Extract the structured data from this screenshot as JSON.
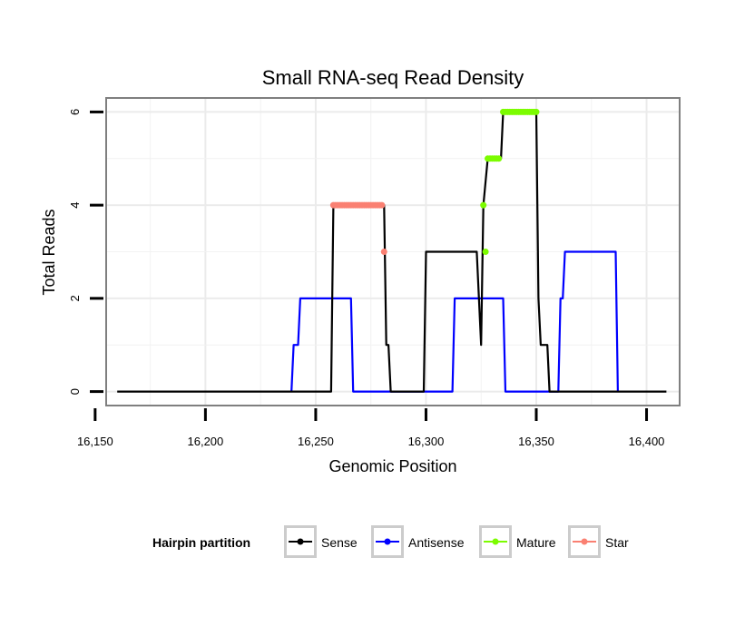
{
  "chart_data": {
    "type": "line",
    "title": "Small RNA-seq Read Density",
    "xlabel": "Genomic Position",
    "ylabel": "Total Reads",
    "xlim": [
      16155,
      16415
    ],
    "ylim": [
      -0.3,
      6.3
    ],
    "x_ticks": [
      16150,
      16200,
      16250,
      16300,
      16350,
      16400
    ],
    "x_tick_labels": [
      "16,150",
      "16,200",
      "16,250",
      "16,300",
      "16,350",
      "16,400"
    ],
    "y_ticks": [
      0,
      2,
      4,
      6
    ],
    "y_tick_labels": [
      "0",
      "2",
      "4",
      "6"
    ],
    "legend_title": "Hairpin partition",
    "legend_position": "bottom",
    "series": [
      {
        "name": "Sense",
        "color": "#000000",
        "points": [
          [
            16160,
            0
          ],
          [
            16257,
            0
          ],
          [
            16258,
            4
          ],
          [
            16281,
            4
          ],
          [
            16282,
            1
          ],
          [
            16283,
            1
          ],
          [
            16284,
            0
          ],
          [
            16299,
            0
          ],
          [
            16300,
            3
          ],
          [
            16323,
            3
          ],
          [
            16325,
            1
          ],
          [
            16326,
            4
          ],
          [
            16328,
            5
          ],
          [
            16334,
            5
          ],
          [
            16335,
            6
          ],
          [
            16350,
            6
          ],
          [
            16351,
            2
          ],
          [
            16352,
            1
          ],
          [
            16355,
            1
          ],
          [
            16356,
            0
          ],
          [
            16409,
            0
          ]
        ]
      },
      {
        "name": "Antisense",
        "color": "#0000ff",
        "points": [
          [
            16239,
            0
          ],
          [
            16240,
            1
          ],
          [
            16242,
            1
          ],
          [
            16243,
            2
          ],
          [
            16266,
            2
          ],
          [
            16267,
            0
          ],
          [
            16312,
            0
          ],
          [
            16313,
            2
          ],
          [
            16335,
            2
          ],
          [
            16336,
            0
          ],
          [
            16360,
            0
          ],
          [
            16361,
            2
          ],
          [
            16362,
            2
          ],
          [
            16363,
            3
          ],
          [
            16386,
            3
          ],
          [
            16387,
            0
          ]
        ]
      },
      {
        "name": "Mature",
        "color": "#7cfc00",
        "points": [
          [
            16326,
            4
          ],
          [
            16327,
            3
          ],
          [
            16328,
            5
          ],
          [
            16329,
            5
          ],
          [
            16330,
            5
          ],
          [
            16331,
            5
          ],
          [
            16332,
            5
          ],
          [
            16333,
            5
          ],
          [
            16335,
            6
          ],
          [
            16336,
            6
          ],
          [
            16337,
            6
          ],
          [
            16338,
            6
          ],
          [
            16339,
            6
          ],
          [
            16340,
            6
          ],
          [
            16341,
            6
          ],
          [
            16342,
            6
          ],
          [
            16343,
            6
          ],
          [
            16344,
            6
          ],
          [
            16345,
            6
          ],
          [
            16346,
            6
          ],
          [
            16347,
            6
          ],
          [
            16348,
            6
          ],
          [
            16349,
            6
          ],
          [
            16350,
            6
          ]
        ]
      },
      {
        "name": "Star",
        "color": "#fa8072",
        "points": [
          [
            16258,
            4
          ],
          [
            16259,
            4
          ],
          [
            16260,
            4
          ],
          [
            16261,
            4
          ],
          [
            16262,
            4
          ],
          [
            16263,
            4
          ],
          [
            16264,
            4
          ],
          [
            16265,
            4
          ],
          [
            16266,
            4
          ],
          [
            16267,
            4
          ],
          [
            16268,
            4
          ],
          [
            16269,
            4
          ],
          [
            16270,
            4
          ],
          [
            16271,
            4
          ],
          [
            16272,
            4
          ],
          [
            16273,
            4
          ],
          [
            16274,
            4
          ],
          [
            16275,
            4
          ],
          [
            16276,
            4
          ],
          [
            16277,
            4
          ],
          [
            16278,
            4
          ],
          [
            16279,
            4
          ],
          [
            16280,
            4
          ],
          [
            16281,
            3
          ]
        ]
      }
    ]
  }
}
